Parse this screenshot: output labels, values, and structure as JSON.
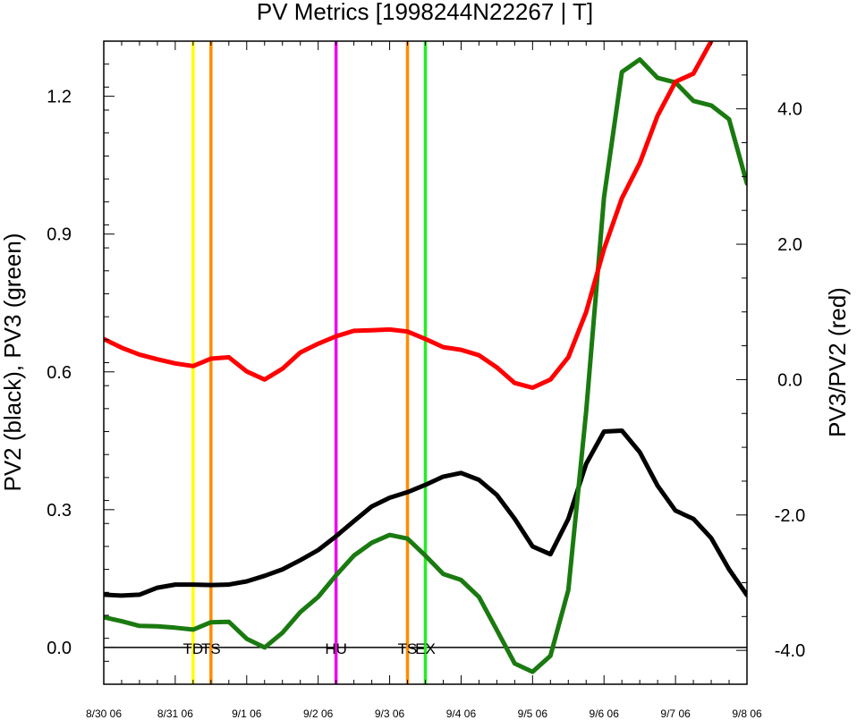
{
  "chart_data": {
    "type": "line",
    "title": "PV Metrics [1998244N22267 | T]",
    "ylabel_left": "PV2 (black), PV3 (green)",
    "ylabel_right": "PV3/PV2 (red)",
    "x_tick_labels": [
      "8/30 06",
      "8/31 06",
      "9/1 06",
      "9/2 06",
      "9/3 06",
      "9/4 06",
      "9/5 06",
      "9/6 06",
      "9/7 06",
      "9/8 06"
    ],
    "x_range_days": [
      0,
      9
    ],
    "y_left": {
      "range": [
        -0.08,
        1.32
      ],
      "ticks": [
        0.0,
        0.3,
        0.6,
        0.9,
        1.2
      ],
      "tick_labels": [
        "0.0",
        "0.3",
        "0.6",
        "0.9",
        "1.2"
      ]
    },
    "y_right": {
      "range": [
        -4.5,
        5.0
      ],
      "ticks": [
        -4.0,
        -2.0,
        0.0,
        2.0,
        4.0
      ],
      "tick_labels": [
        "-4.0",
        "-2.0",
        "0.0",
        "2.0",
        "4.0"
      ]
    },
    "zero_line": 0.0,
    "series": [
      {
        "key": "pv2",
        "axis": "left",
        "color": "#000000",
        "x": [
          0,
          0.25,
          0.5,
          0.75,
          1,
          1.25,
          1.5,
          1.75,
          2,
          2.25,
          2.5,
          2.75,
          3,
          3.25,
          3.5,
          3.75,
          4,
          4.25,
          4.5,
          4.75,
          5,
          5.25,
          5.5,
          5.75,
          6,
          6.25,
          6.5,
          6.75,
          7,
          7.25,
          7.5,
          7.75,
          8,
          8.25,
          8.5,
          8.75,
          9
        ],
        "y": [
          0.115,
          0.113,
          0.115,
          0.13,
          0.137,
          0.137,
          0.136,
          0.137,
          0.144,
          0.156,
          0.17,
          0.19,
          0.212,
          0.242,
          0.275,
          0.307,
          0.326,
          0.338,
          0.354,
          0.372,
          0.38,
          0.365,
          0.332,
          0.28,
          0.22,
          0.203,
          0.28,
          0.4,
          0.47,
          0.472,
          0.425,
          0.352,
          0.298,
          0.28,
          0.238,
          0.17,
          0.114
        ]
      },
      {
        "key": "pv3",
        "axis": "left",
        "color": "#1a7a10",
        "x": [
          0,
          0.25,
          0.5,
          0.75,
          1,
          1.25,
          1.5,
          1.75,
          2,
          2.25,
          2.5,
          2.75,
          3,
          3.25,
          3.5,
          3.75,
          4,
          4.25,
          4.5,
          4.75,
          5,
          5.25,
          5.5,
          5.75,
          6,
          6.25,
          6.5,
          6.75,
          7,
          7.25,
          7.5,
          7.75,
          8,
          8.25,
          8.5,
          8.75,
          9
        ],
        "y": [
          0.066,
          0.057,
          0.047,
          0.046,
          0.043,
          0.039,
          0.055,
          0.056,
          0.019,
          0.0,
          0.032,
          0.077,
          0.11,
          0.157,
          0.2,
          0.228,
          0.245,
          0.237,
          0.2,
          0.16,
          0.147,
          0.11,
          0.038,
          -0.035,
          -0.053,
          -0.018,
          0.125,
          0.515,
          0.98,
          1.253,
          1.28,
          1.24,
          1.23,
          1.19,
          1.18,
          1.15,
          1.01
        ]
      },
      {
        "key": "ratio",
        "axis": "right",
        "color": "#ff0000",
        "x": [
          0,
          0.25,
          0.5,
          0.75,
          1,
          1.25,
          1.5,
          1.75,
          2,
          2.25,
          2.5,
          2.75,
          3,
          3.25,
          3.5,
          3.75,
          4,
          4.25,
          4.5,
          4.75,
          5,
          5.25,
          5.5,
          5.75,
          6,
          6.25,
          6.5,
          6.75,
          7,
          7.25,
          7.5,
          7.75,
          8,
          8.25,
          8.5
        ],
        "y": [
          0.6,
          0.47,
          0.37,
          0.3,
          0.24,
          0.2,
          0.31,
          0.33,
          0.12,
          0.0,
          0.16,
          0.4,
          0.53,
          0.64,
          0.72,
          0.73,
          0.74,
          0.71,
          0.6,
          0.48,
          0.44,
          0.36,
          0.18,
          -0.05,
          -0.12,
          0.0,
          0.33,
          1.0,
          1.93,
          2.68,
          3.2,
          3.9,
          4.4,
          4.52,
          5.0
        ]
      }
    ],
    "events": [
      {
        "day": 1.25,
        "label": "TD",
        "color": "#ffff00"
      },
      {
        "day": 1.5,
        "label": "TS",
        "color": "#ff8c00"
      },
      {
        "day": 3.25,
        "label": "HU",
        "color": "#ee00ee"
      },
      {
        "day": 4.25,
        "label": "TS",
        "color": "#ff8c00"
      },
      {
        "day": 4.5,
        "label": "EX",
        "color": "#22ee22"
      }
    ]
  }
}
